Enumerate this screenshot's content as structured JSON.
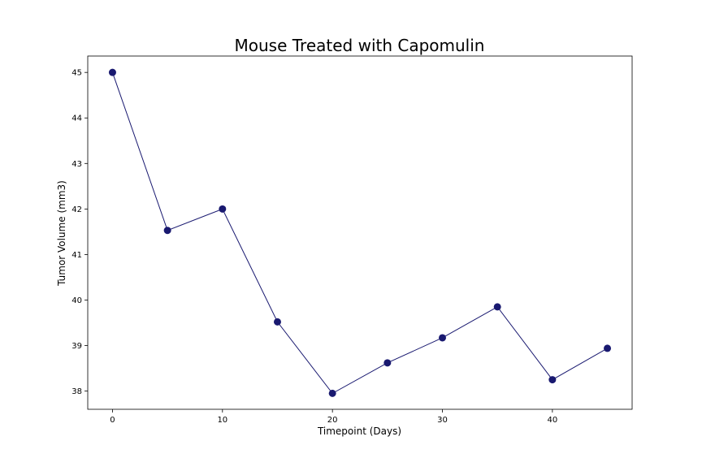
{
  "chart_data": {
    "type": "line",
    "title": "Mouse Treated with Capomulin",
    "xlabel": "Timepoint (Days)",
    "ylabel": "Tumor Volume (mm3)",
    "x": [
      0,
      5,
      10,
      15,
      20,
      25,
      30,
      35,
      40,
      45
    ],
    "series": [
      {
        "values": [
          45.0,
          41.53,
          42.0,
          39.52,
          37.95,
          38.62,
          39.17,
          39.85,
          38.25,
          38.94
        ]
      }
    ],
    "xlim": [
      -2.25,
      47.25
    ],
    "ylim": [
      37.6,
      45.36
    ],
    "xticks": [
      0,
      10,
      20,
      30,
      40
    ],
    "yticks": [
      38,
      39,
      40,
      41,
      42,
      43,
      44,
      45
    ],
    "grid": false,
    "legend": "none",
    "colors": {
      "line": "#191970",
      "marker": "#191970",
      "axes": "#000000"
    }
  }
}
